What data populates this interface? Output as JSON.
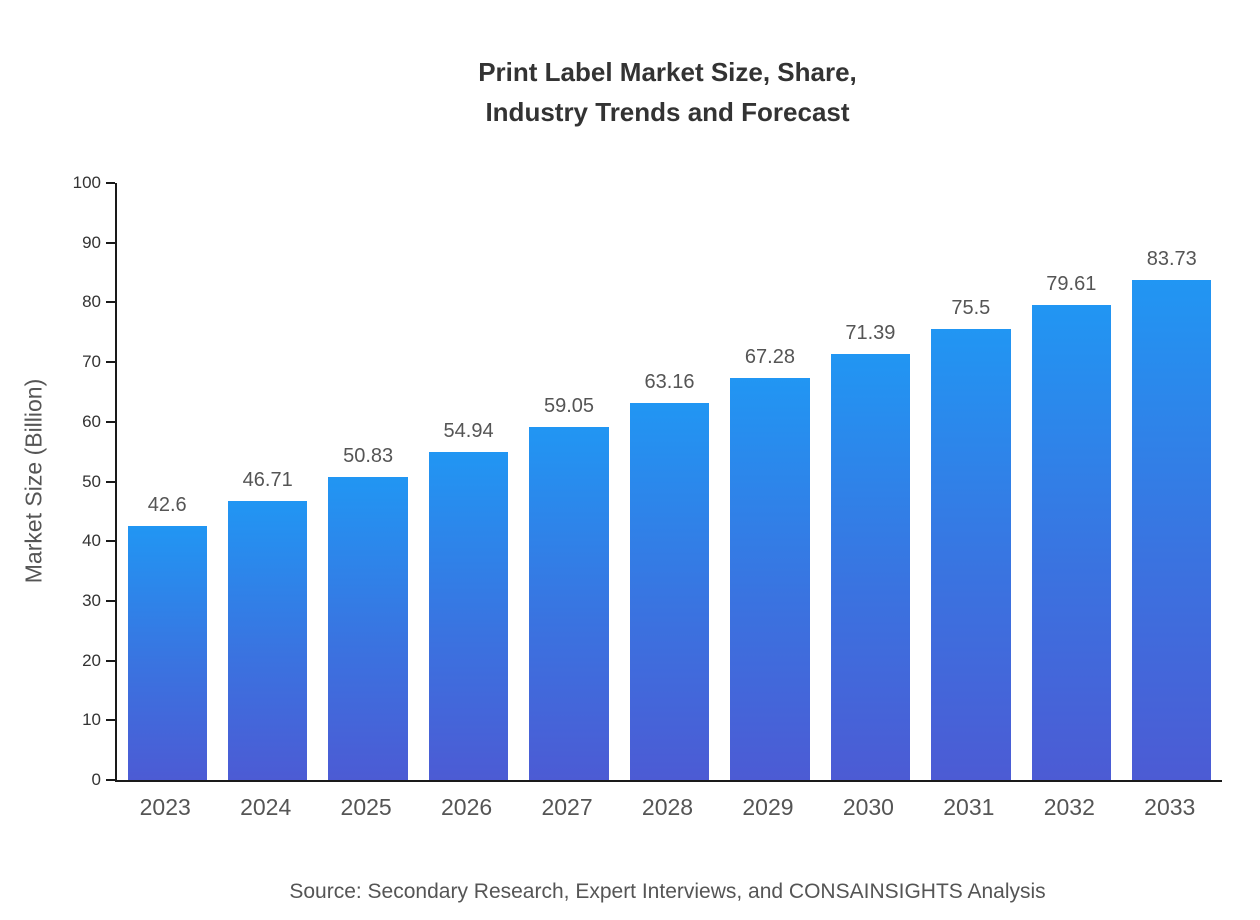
{
  "chart_data": {
    "type": "bar",
    "title": "Print Label Market Size, Share, Industry Trends and Forecast",
    "title_lines": [
      "Print Label Market Size, Share,",
      "Industry Trends and Forecast"
    ],
    "categories": [
      "2023",
      "2024",
      "2025",
      "2026",
      "2027",
      "2028",
      "2029",
      "2030",
      "2031",
      "2032",
      "2033"
    ],
    "values": [
      42.6,
      46.71,
      50.83,
      54.94,
      59.05,
      63.16,
      67.28,
      71.39,
      75.5,
      79.61,
      83.73
    ],
    "xlabel": "",
    "ylabel": "Market Size (Billion)",
    "ylim": [
      0,
      100
    ],
    "ytick_step": 10,
    "grid": false,
    "legend": "none",
    "bar_gradient_top": "#2196f3",
    "bar_gradient_bottom": "#4c5bd4",
    "axis_color": "#1a1a1a",
    "source": "Source: Secondary Research, Expert Interviews, and CONSAINSIGHTS Analysis"
  }
}
